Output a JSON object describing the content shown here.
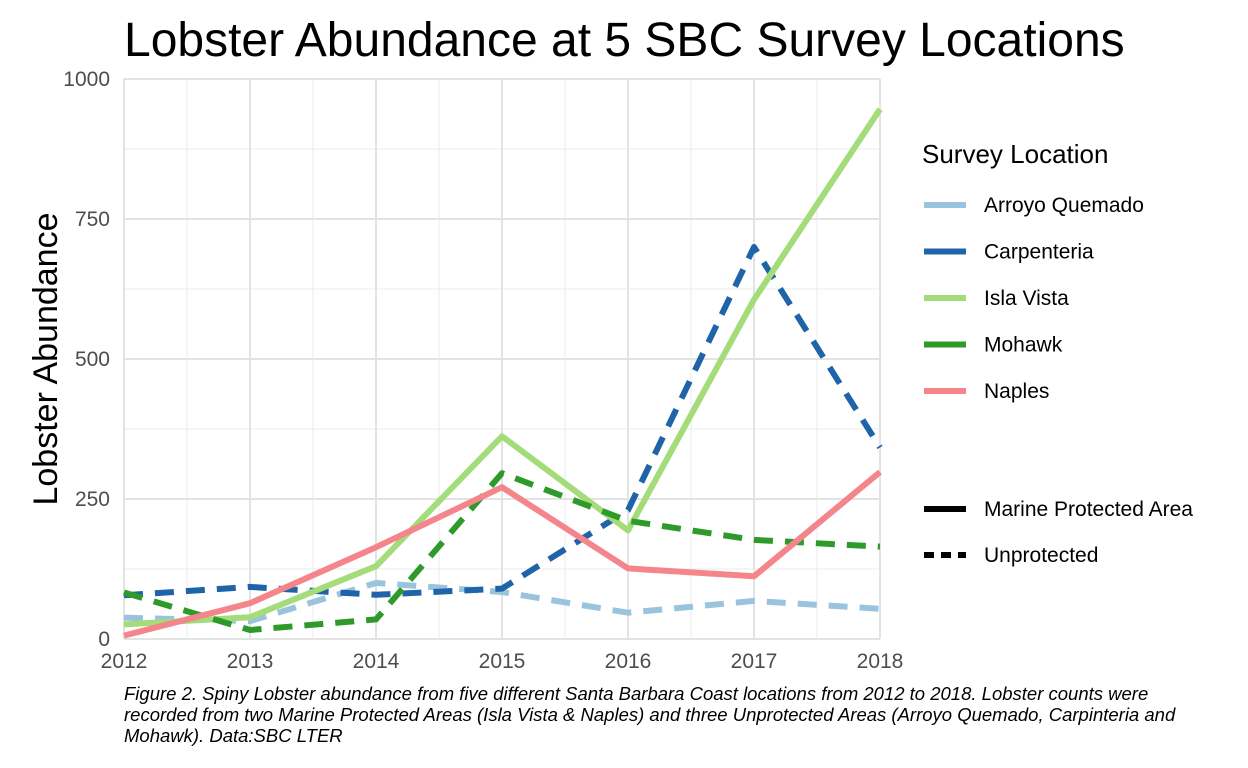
{
  "chart_data": {
    "type": "line",
    "title": "Lobster Abundance at 5 SBC Survey Locations",
    "xlabel": "",
    "ylabel": "Lobster Abundance",
    "x": [
      2012,
      2013,
      2014,
      2015,
      2016,
      2017,
      2018
    ],
    "xlim": [
      2012,
      2018
    ],
    "ylim": [
      0,
      1000
    ],
    "yticks": [
      0,
      250,
      500,
      750,
      1000
    ],
    "grid": true,
    "legend_title": "Survey Location",
    "legend_position": "right",
    "series": [
      {
        "name": "Arroyo Quemado",
        "color": "#9ac4de",
        "linetype": "dashed",
        "values": [
          38,
          32,
          100,
          84,
          47,
          68,
          54
        ]
      },
      {
        "name": "Carpenteria",
        "color": "#1f63a8",
        "linetype": "dashed",
        "values": [
          78,
          93,
          79,
          90,
          230,
          700,
          342
        ]
      },
      {
        "name": "Isla Vista",
        "color": "#a3dc79",
        "linetype": "solid",
        "values": [
          26,
          39,
          130,
          362,
          194,
          606,
          946
        ]
      },
      {
        "name": "Mohawk",
        "color": "#2e9a2a",
        "linetype": "dashed",
        "values": [
          83,
          16,
          35,
          296,
          211,
          177,
          165
        ]
      },
      {
        "name": "Naples",
        "color": "#f4858a",
        "linetype": "solid",
        "values": [
          6,
          64,
          164,
          271,
          126,
          112,
          298
        ]
      }
    ],
    "linetype_legend": [
      {
        "label": "Marine Protected Area",
        "linetype": "solid"
      },
      {
        "label": "Unprotected",
        "linetype": "dashed"
      }
    ]
  },
  "caption": "Figure 2. Spiny Lobster abundance from five different Santa Barbara Coast locations from 2012 to 2018. Lobster counts were recorded from two Marine Protected Areas (Isla Vista & Naples) and three Unprotected Areas (Arroyo Quemado, Carpinteria and Mohawk). Data:SBC LTER"
}
